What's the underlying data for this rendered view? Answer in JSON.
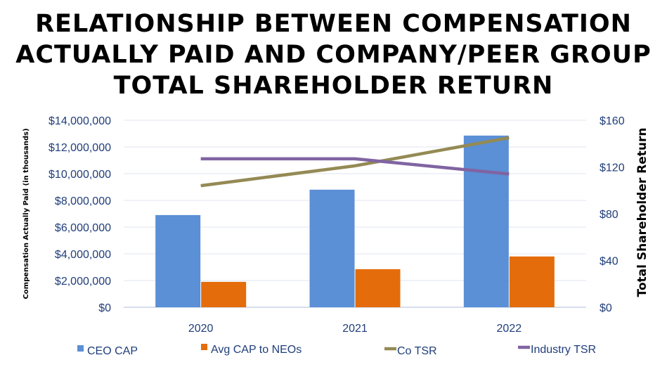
{
  "chart_data": {
    "type": "bar",
    "title_lines": [
      "RELATIONSHIP BETWEEN COMPENSATION",
      "ACTUALLY PAID AND COMPANY/PEER GROUP",
      "TOTAL SHAREHOLDER RETURN"
    ],
    "categories": [
      "2020",
      "2021",
      "2022"
    ],
    "ylabel": "Compensation Actually Paid (in thousands)",
    "y2label": "Total Shareholder Return",
    "ylim": [
      0,
      14000000
    ],
    "y2lim": [
      0,
      160
    ],
    "yticks": [
      "$0",
      "$2,000,000",
      "$4,000,000",
      "$6,000,000",
      "$8,000,000",
      "$10,000,000",
      "$12,000,000",
      "$14,000,000"
    ],
    "y2ticks": [
      "$0",
      "$40",
      "$80",
      "$120",
      "$160"
    ],
    "series": [
      {
        "name": "CEO CAP",
        "type": "bar",
        "axis": "left",
        "color": "#5b8fd6",
        "values": [
          6900000,
          8800000,
          12850000
        ]
      },
      {
        "name": "Avg CAP to NEOs",
        "type": "bar",
        "axis": "left",
        "color": "#e46c0a",
        "values": [
          1900000,
          2850000,
          3800000
        ]
      },
      {
        "name": "Co TSR",
        "type": "line",
        "axis": "right",
        "color": "#948a54",
        "values": [
          104,
          121,
          145
        ]
      },
      {
        "name": "Industry TSR",
        "type": "line",
        "axis": "right",
        "color": "#8064a2",
        "values": [
          127,
          127,
          114
        ]
      }
    ],
    "grid": true,
    "legend_position": "bottom"
  }
}
